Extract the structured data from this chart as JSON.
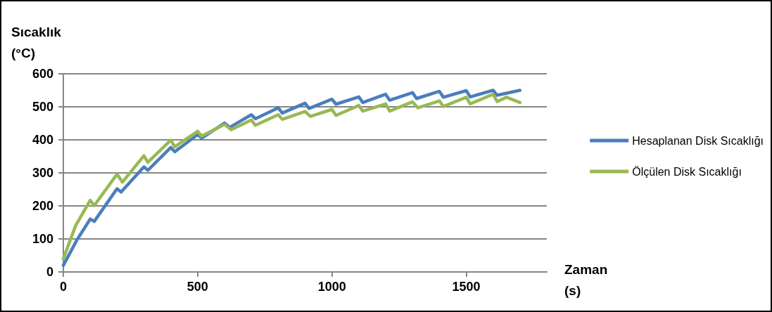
{
  "chart_data": {
    "type": "line",
    "xlabel": "Zaman (s)",
    "ylabel": "Sıcaklık (°C)",
    "xlim": [
      0,
      1800
    ],
    "xticks": [
      0,
      500,
      1000,
      1500
    ],
    "ylim": [
      0,
      600
    ],
    "yticks": [
      0,
      100,
      200,
      300,
      400,
      500,
      600
    ],
    "grid": "y",
    "legend": "right",
    "marker": "none",
    "line_style": "solid",
    "series": [
      {
        "name": "Hesaplanan Disk Sıcaklığı",
        "color": "#4a7ebb",
        "x": [
          0,
          50,
          100,
          115,
          200,
          215,
          300,
          315,
          400,
          415,
          500,
          515,
          600,
          620,
          700,
          715,
          800,
          815,
          900,
          915,
          1000,
          1015,
          1100,
          1115,
          1200,
          1215,
          1300,
          1315,
          1400,
          1415,
          1500,
          1515,
          1600,
          1615,
          1700
        ],
        "values": [
          20,
          96,
          160,
          153,
          252,
          242,
          318,
          308,
          377,
          364,
          416,
          405,
          451,
          438,
          476,
          464,
          497,
          481,
          511,
          495,
          523,
          508,
          530,
          513,
          538,
          520,
          543,
          525,
          547,
          529,
          549,
          530,
          550,
          535,
          550
        ]
      },
      {
        "name": "Ölçülen Disk Sıcaklığı",
        "color": "#98b954",
        "x": [
          0,
          45,
          100,
          115,
          200,
          220,
          300,
          315,
          400,
          415,
          500,
          515,
          600,
          625,
          700,
          715,
          800,
          815,
          900,
          920,
          1000,
          1015,
          1100,
          1115,
          1200,
          1215,
          1300,
          1320,
          1400,
          1415,
          1500,
          1515,
          1600,
          1615,
          1650,
          1700
        ],
        "values": [
          40,
          139,
          217,
          201,
          296,
          272,
          352,
          332,
          399,
          379,
          426,
          411,
          447,
          431,
          460,
          444,
          476,
          462,
          486,
          471,
          492,
          474,
          504,
          487,
          509,
          487,
          515,
          497,
          518,
          501,
          529,
          509,
          538,
          516,
          529,
          513
        ]
      }
    ]
  }
}
